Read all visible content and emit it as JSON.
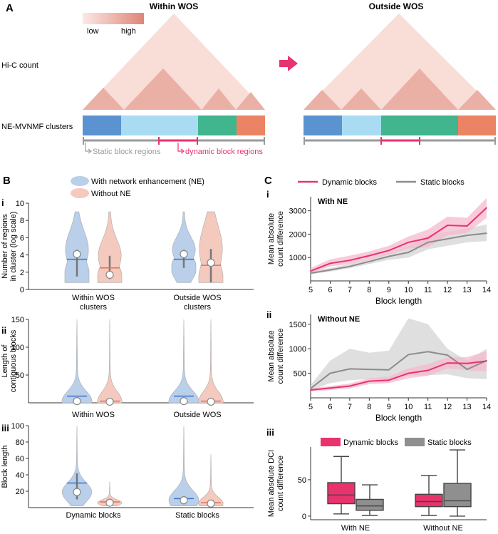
{
  "colors": {
    "pink": "#e8336d",
    "pink_light": "#f6b9cd",
    "gray": "#8c8c8c",
    "gray_light": "#d9d9d9",
    "blue": "#3b74c4",
    "blue_fill": "#b9cfea",
    "salmon": "#e5704f",
    "salmon_fill": "#f4c9be",
    "tri_light": "#f8dcd6",
    "tri_dark": "#e9aaa0",
    "cluster_blue": "#5b93d1",
    "cluster_lightblue": "#a9dcf2",
    "cluster_green": "#40b58e",
    "cluster_orange": "#ea8464",
    "box_pink": "#e8336d",
    "box_gray": "#8f8f8f"
  },
  "panelA": {
    "letter": "A",
    "title_within": "Within WOS",
    "title_outside": "Outside WOS",
    "legend_low": "low",
    "legend_high": "high",
    "label_hic": "Hi-C count",
    "label_clusters": "NE-MVNMF clusters",
    "static_regions": "Static block regions",
    "dynamic_regions": "dynamic block regions"
  },
  "panelB": {
    "letter": "B",
    "legend_ne": "With network enhancement (NE)",
    "legend_without": "Without NE",
    "subpanels": [
      {
        "roman": "i",
        "ylabel1": "Number of regions",
        "ylabel2": "in cluster (log scale)",
        "ylim": [
          0,
          10
        ],
        "yticks": [
          "0",
          "2",
          "4",
          "6",
          "8",
          "10"
        ],
        "groups": [
          {
            "label1": "Within WOS",
            "label2": "clusters",
            "ne": {
              "min": 0.8,
              "max": 9.0,
              "median": 4.1,
              "q1": 1.5,
              "q3": 4.6,
              "mean": 3.5
            },
            "without": {
              "min": 0.8,
              "max": 9.0,
              "median": 1.7,
              "q1": 1.2,
              "q3": 3.9,
              "mean": 2.5
            }
          },
          {
            "label1": "Outside WOS",
            "label2": "clusters",
            "ne": {
              "min": 0.8,
              "max": 9.0,
              "median": 4.1,
              "q1": 2.5,
              "q3": 4.6,
              "mean": 3.5
            },
            "without": {
              "min": 0.8,
              "max": 9.0,
              "median": 3.1,
              "q1": 0.8,
              "q3": 4.7,
              "mean": 2.8
            }
          }
        ]
      },
      {
        "roman": "ii",
        "ylabel1": "Length of",
        "ylabel2": "contiguous blocks",
        "ylim": [
          0,
          150
        ],
        "yticks": [
          "50",
          "100",
          "150"
        ],
        "groups": [
          {
            "label1": "Within WOS",
            "label2": "",
            "ne": {
              "min": 0,
              "max": 150,
              "median": 3,
              "q1": 1,
              "q3": 10,
              "mean": 12
            },
            "without": {
              "min": 0,
              "max": 150,
              "median": 2,
              "q1": 1,
              "q3": 4,
              "mean": 3
            }
          },
          {
            "label1": "Outside WOS",
            "label2": "",
            "ne": {
              "min": 0,
              "max": 150,
              "median": 3,
              "q1": 1,
              "q3": 10,
              "mean": 12
            },
            "without": {
              "min": 0,
              "max": 150,
              "median": 2,
              "q1": 1,
              "q3": 4,
              "mean": 3
            }
          }
        ]
      },
      {
        "roman": "iii",
        "ylabel1": "Block length",
        "ylabel2": "",
        "ylim": [
          0,
          100
        ],
        "yticks": [
          "20",
          "40",
          "60",
          "80",
          "100"
        ],
        "groups": [
          {
            "label1": "Dynamic blocks",
            "label2": "",
            "ne": {
              "min": 2,
              "max": 100,
              "median": 19,
              "q1": 10,
              "q3": 42,
              "mean": 30
            },
            "without": {
              "min": 2,
              "max": 32,
              "median": 6,
              "q1": 3,
              "q3": 9,
              "mean": 7
            }
          },
          {
            "label1": "Static blocks",
            "label2": "",
            "ne": {
              "min": 2,
              "max": 100,
              "median": 9,
              "q1": 4,
              "q3": 14,
              "mean": 11
            },
            "without": {
              "min": 2,
              "max": 65,
              "median": 5,
              "q1": 2,
              "q3": 8,
              "mean": 6
            }
          }
        ]
      }
    ]
  },
  "panelC": {
    "letter": "C",
    "legend_dynamic": "Dynamic blocks",
    "legend_static": "Static blocks"
  },
  "chart_data": [
    {
      "type": "line",
      "id": "C-i",
      "roman": "i",
      "title": "With NE",
      "xlabel": "Block length",
      "ylabel1": "Mean absolute",
      "ylabel2": "count difference",
      "x": [
        5,
        6,
        7,
        8,
        9,
        10,
        11,
        12,
        13,
        14
      ],
      "xlim": [
        5,
        14
      ],
      "ylim": [
        0,
        3600
      ],
      "xticks": [
        "5",
        "6",
        "7",
        "8",
        "9",
        "10",
        "11",
        "12",
        "13",
        "14"
      ],
      "yticks": [
        "1000",
        "2000",
        "3000"
      ],
      "series": [
        {
          "name": "Dynamic blocks",
          "values": [
            420,
            750,
            880,
            1080,
            1300,
            1650,
            1830,
            2380,
            2350,
            3130
          ],
          "lower": [
            330,
            620,
            720,
            920,
            1120,
            1380,
            1450,
            1950,
            2050,
            2700
          ],
          "upper": [
            550,
            920,
            1080,
            1260,
            1500,
            1900,
            2200,
            2750,
            2700,
            3550
          ]
        },
        {
          "name": "Static blocks",
          "values": [
            330,
            470,
            620,
            830,
            1050,
            1220,
            1650,
            1800,
            1950,
            2040
          ],
          "lower": [
            280,
            400,
            540,
            720,
            900,
            1000,
            1350,
            1500,
            1650,
            1700
          ],
          "upper": [
            400,
            560,
            720,
            950,
            1200,
            1500,
            1950,
            2100,
            2250,
            2420
          ]
        }
      ]
    },
    {
      "type": "line",
      "id": "C-ii",
      "roman": "ii",
      "title": "Without NE",
      "xlabel": "Block length",
      "ylabel1": "Mean absolute",
      "ylabel2": "count difference",
      "x": [
        5,
        6,
        7,
        8,
        9,
        10,
        11,
        12,
        13,
        14
      ],
      "xlim": [
        5,
        14
      ],
      "ylim": [
        0,
        1700
      ],
      "xticks": [
        "5",
        "6",
        "7",
        "8",
        "9",
        "10",
        "11",
        "12",
        "13",
        "14"
      ],
      "yticks": [
        "500",
        "1000",
        "1500"
      ],
      "series": [
        {
          "name": "Dynamic blocks",
          "values": [
            160,
            200,
            240,
            340,
            360,
            500,
            560,
            710,
            700,
            750
          ],
          "lower": [
            130,
            160,
            190,
            280,
            300,
            400,
            450,
            600,
            560,
            540
          ],
          "upper": [
            190,
            240,
            290,
            400,
            430,
            600,
            690,
            820,
            830,
            950
          ]
        },
        {
          "name": "Static blocks",
          "values": [
            190,
            500,
            590,
            580,
            570,
            880,
            940,
            870,
            580,
            760
          ],
          "lower": [
            150,
            300,
            360,
            380,
            380,
            450,
            460,
            480,
            400,
            380
          ],
          "upper": [
            260,
            760,
            1000,
            920,
            960,
            1620,
            1500,
            1000,
            760,
            1000
          ]
        }
      ]
    },
    {
      "type": "box",
      "id": "C-iii",
      "roman": "iii",
      "title": "",
      "ylabel1": "Mean absolute DCI",
      "ylabel2": "count difference",
      "categories": [
        "With NE",
        "Without NE"
      ],
      "ylim": [
        -5,
        95
      ],
      "yticks": [
        "0",
        "50"
      ],
      "series": [
        {
          "name": "Dynamic blocks",
          "boxes": [
            {
              "min": 3,
              "q1": 17,
              "median": 29,
              "q3": 46,
              "max": 82
            },
            {
              "min": 1,
              "q1": 13,
              "median": 20,
              "q3": 30,
              "max": 56
            }
          ]
        },
        {
          "name": "Static blocks",
          "boxes": [
            {
              "min": 1,
              "q1": 8,
              "median": 14,
              "q3": 23,
              "max": 43
            },
            {
              "min": 0,
              "q1": 13,
              "median": 21,
              "q3": 45,
              "max": 91
            }
          ]
        }
      ]
    }
  ]
}
